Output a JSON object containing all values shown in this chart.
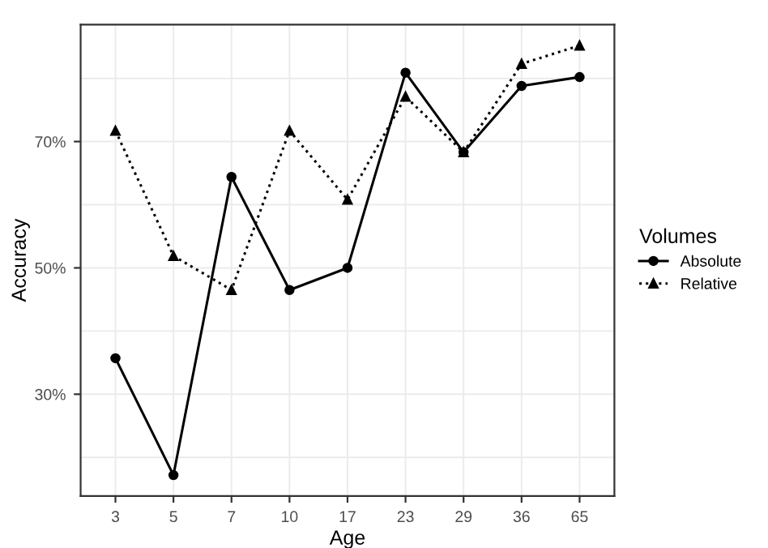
{
  "chart_data": {
    "type": "line",
    "xlabel": "Age",
    "ylabel": "Accuracy",
    "legend_title": "Volumes",
    "categories": [
      "3",
      "5",
      "7",
      "10",
      "17",
      "23",
      "29",
      "36",
      "65"
    ],
    "series": [
      {
        "name": "Absolute",
        "color": "#000000",
        "marker": "circle",
        "line_style": "solid",
        "values": [
          35.7,
          17.2,
          64.4,
          46.5,
          50.0,
          80.9,
          68.3,
          78.8,
          80.2
        ]
      },
      {
        "name": "Relative",
        "color": "#000000",
        "marker": "triangle",
        "line_style": "dotted",
        "values": [
          71.7,
          51.9,
          46.5,
          71.7,
          60.8,
          77.1,
          68.3,
          82.3,
          85.2
        ]
      }
    ],
    "ylim": [
      13.9,
      88.5
    ],
    "yticks": [
      {
        "value": 20,
        "label": null
      },
      {
        "value": 30,
        "label": "30%"
      },
      {
        "value": 40,
        "label": null
      },
      {
        "value": 50,
        "label": "50%"
      },
      {
        "value": 60,
        "label": null
      },
      {
        "value": 70,
        "label": "70%"
      },
      {
        "value": 80,
        "label": null
      }
    ],
    "grid": true,
    "legend": "right"
  }
}
